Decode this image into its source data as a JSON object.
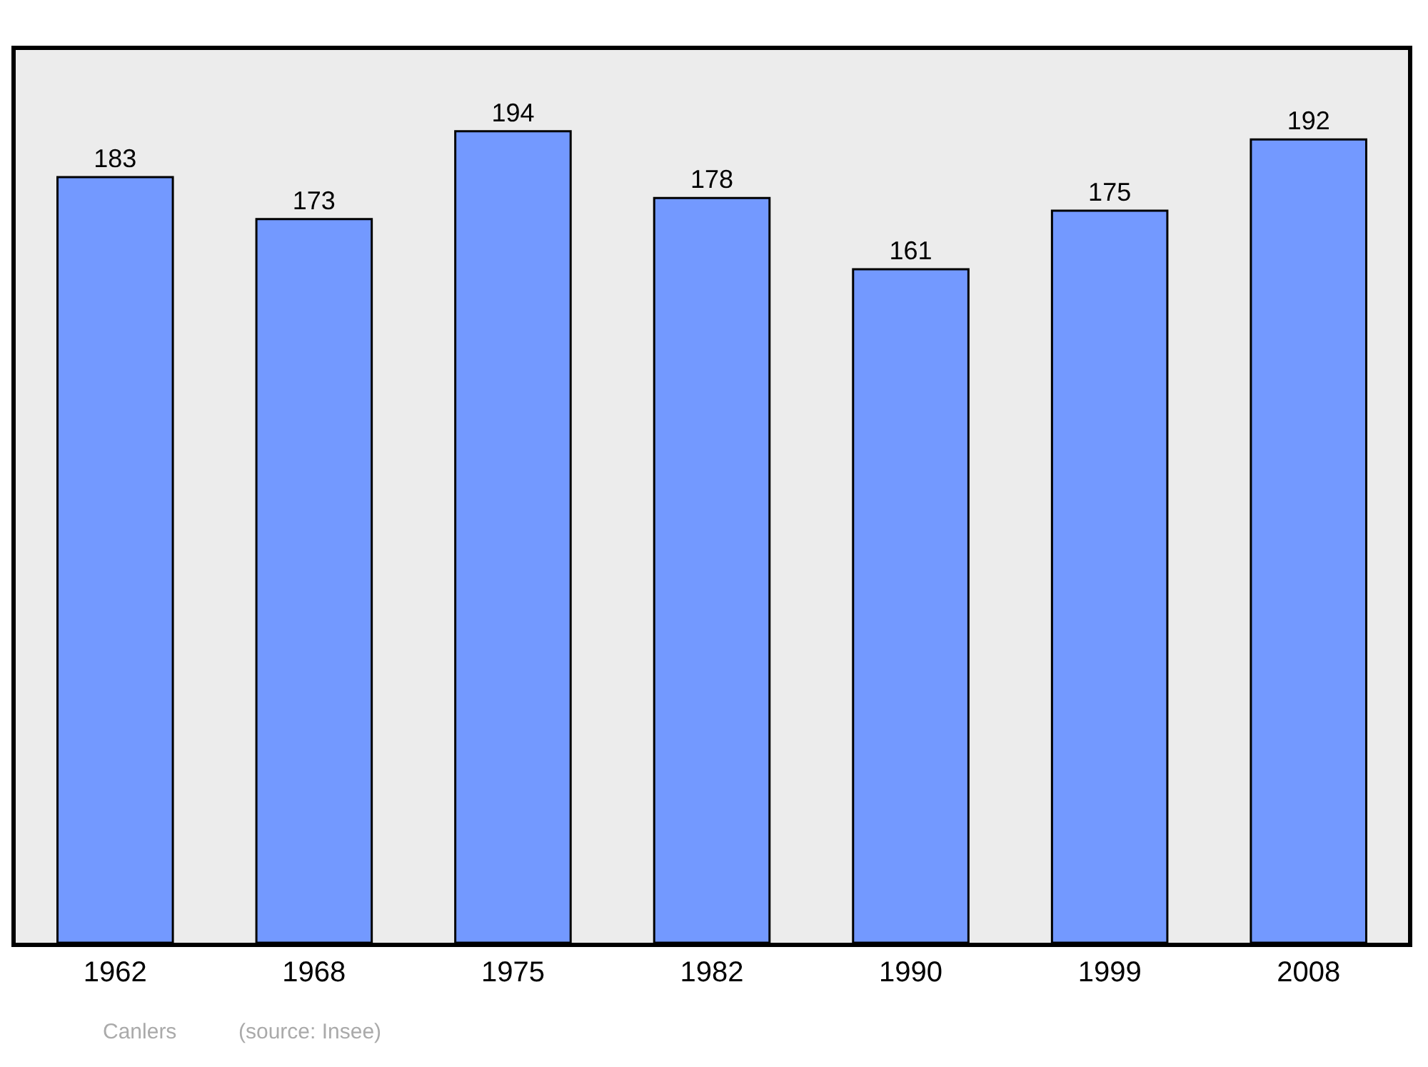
{
  "chart_data": {
    "type": "bar",
    "categories": [
      "1962",
      "1968",
      "1975",
      "1982",
      "1990",
      "1999",
      "2008"
    ],
    "values": [
      183,
      173,
      194,
      178,
      161,
      175,
      192
    ],
    "color": "#7399ff",
    "data_labels": true,
    "grid": false,
    "legend": false,
    "annotations": [
      "Canlers",
      "(source: Insee)"
    ]
  }
}
